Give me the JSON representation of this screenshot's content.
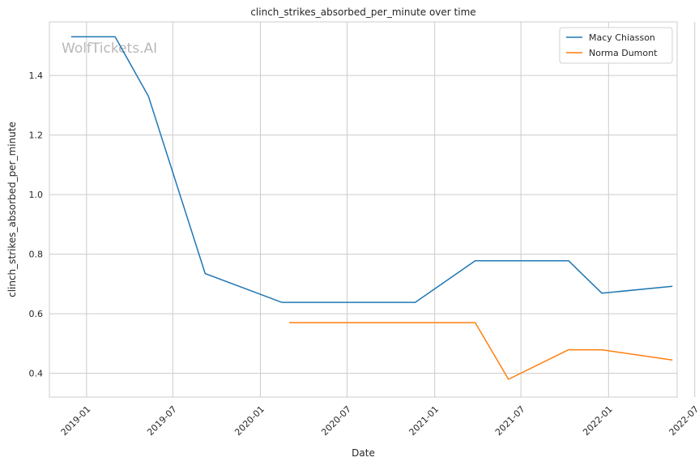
{
  "chart_data": {
    "type": "line",
    "title": "clinch_strikes_absorbed_per_minute over time",
    "xlabel": "Date",
    "ylabel": "clinch_strikes_absorbed_per_minute",
    "watermark": "WolfTickets.AI",
    "xlim": [
      "2018-10-15",
      "2022-05-25"
    ],
    "ylim": [
      0.32,
      1.58
    ],
    "x_ticks": [
      {
        "date": "2019-01-01",
        "label": "2019-01"
      },
      {
        "date": "2019-07-01",
        "label": "2019-07"
      },
      {
        "date": "2020-01-01",
        "label": "2020-01"
      },
      {
        "date": "2020-07-01",
        "label": "2020-07"
      },
      {
        "date": "2021-01-01",
        "label": "2021-01"
      },
      {
        "date": "2021-07-01",
        "label": "2021-07"
      },
      {
        "date": "2022-01-01",
        "label": "2022-01"
      },
      {
        "date": "2022-07-01",
        "label": "2022-07"
      }
    ],
    "y_ticks": [
      {
        "value": 0.4,
        "label": "0.4"
      },
      {
        "value": 0.6,
        "label": "0.6"
      },
      {
        "value": 0.8,
        "label": "0.8"
      },
      {
        "value": 1.0,
        "label": "1.0"
      },
      {
        "value": 1.2,
        "label": "1.2"
      },
      {
        "value": 1.4,
        "label": "1.4"
      }
    ],
    "grid": true,
    "legend_position": "top-right",
    "series": [
      {
        "name": "Macy Chiasson",
        "color": "#1f77b4",
        "points": [
          {
            "x": "2018-12-01",
            "y": 1.53
          },
          {
            "x": "2019-03-02",
            "y": 1.53
          },
          {
            "x": "2019-05-11",
            "y": 1.33
          },
          {
            "x": "2019-09-07",
            "y": 0.735
          },
          {
            "x": "2020-02-15",
            "y": 0.638
          },
          {
            "x": "2020-11-21",
            "y": 0.638
          },
          {
            "x": "2021-03-27",
            "y": 0.778
          },
          {
            "x": "2021-10-09",
            "y": 0.778
          },
          {
            "x": "2021-12-18",
            "y": 0.669
          },
          {
            "x": "2022-05-14",
            "y": 0.692
          }
        ]
      },
      {
        "name": "Norma Dumont",
        "color": "#ff7f0e",
        "points": [
          {
            "x": "2020-03-03",
            "y": 0.57
          },
          {
            "x": "2021-03-27",
            "y": 0.57
          },
          {
            "x": "2021-06-05",
            "y": 0.38
          },
          {
            "x": "2021-10-09",
            "y": 0.479
          },
          {
            "x": "2021-12-18",
            "y": 0.479
          },
          {
            "x": "2022-05-14",
            "y": 0.445
          }
        ]
      }
    ]
  }
}
